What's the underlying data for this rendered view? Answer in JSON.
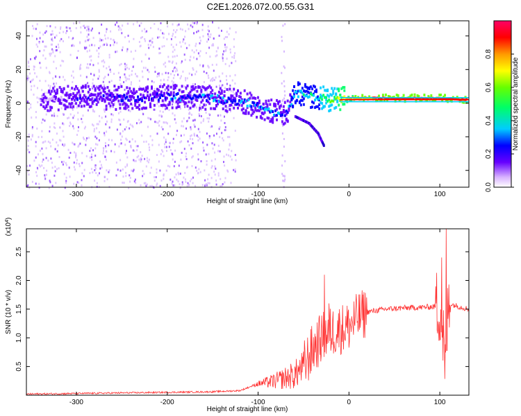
{
  "title": "C2E1.2026.072.00.55.G31",
  "chart_data": [
    {
      "type": "heatmap",
      "xlabel": "Height of straight line (km)",
      "ylabel": "Frequency (Hz)",
      "xlim": [
        -355,
        132
      ],
      "ylim": [
        -50,
        49
      ],
      "xticks": [
        -300,
        -200,
        -100,
        0,
        100
      ],
      "yticks": [
        -40,
        -20,
        0,
        20,
        40
      ],
      "colorbar": {
        "label": "Normalized spectral amplitude",
        "range": [
          0,
          1
        ],
        "ticks": [
          "0.0",
          "0.2",
          "0.4",
          "0.6",
          "0.8"
        ],
        "colors": [
          "#ffffff",
          "#6600ff",
          "#0000ff",
          "#00ccff",
          "#00ff66",
          "#66ff00",
          "#ffff00",
          "#ff9900",
          "#ff0000",
          "#ff0066"
        ]
      },
      "trace": [
        {
          "x": -340,
          "y": 2,
          "amp": 0.15
        },
        {
          "x": -300,
          "y": 4,
          "amp": 0.2
        },
        {
          "x": -250,
          "y": 3,
          "amp": 0.25
        },
        {
          "x": -200,
          "y": 4,
          "amp": 0.3
        },
        {
          "x": -150,
          "y": 3,
          "amp": 0.35
        },
        {
          "x": -110,
          "y": 0,
          "amp": 0.3
        },
        {
          "x": -85,
          "y": -5,
          "amp": 0.35
        },
        {
          "x": -70,
          "y": -6,
          "amp": 0.3
        },
        {
          "x": -60,
          "y": 6,
          "amp": 0.4
        },
        {
          "x": -40,
          "y": 4,
          "amp": 0.45
        },
        {
          "x": -20,
          "y": 2,
          "amp": 0.6
        },
        {
          "x": 0,
          "y": 3,
          "amp": 0.85
        },
        {
          "x": 50,
          "y": 3,
          "amp": 0.95
        },
        {
          "x": 100,
          "y": 3,
          "amp": 0.95
        },
        {
          "x": 130,
          "y": 2,
          "amp": 0.9
        }
      ],
      "branch": [
        {
          "x": -60,
          "y": -8
        },
        {
          "x": -45,
          "y": -12
        },
        {
          "x": -35,
          "y": -18
        },
        {
          "x": -28,
          "y": -26
        }
      ]
    },
    {
      "type": "line",
      "xlabel": "Height of straight line (km)",
      "ylabel": "SNR (10 * v/v)",
      "y_multiplier": "(x10",
      "y_multiplier_exp": "4",
      "xlim": [
        -355,
        132
      ],
      "ylim": [
        0,
        2.9
      ],
      "xticks": [
        -300,
        -200,
        -100,
        0,
        100
      ],
      "yticks": [
        "0.5",
        "1.0",
        "1.5",
        "2.0",
        "2.5"
      ],
      "color": "#ff3333",
      "series": [
        {
          "x": [
            -355,
            -300,
            -250,
            -200,
            -150,
            -120,
            -100,
            -80,
            -60,
            -50,
            -40,
            -30,
            -20,
            -10,
            0,
            10,
            20,
            40,
            60,
            80,
            100,
            104,
            106,
            108,
            110,
            120,
            132
          ],
          "y": [
            0.02,
            0.03,
            0.04,
            0.05,
            0.06,
            0.08,
            0.2,
            0.25,
            0.35,
            0.5,
            0.8,
            1.0,
            1.1,
            1.15,
            1.2,
            1.35,
            1.45,
            1.5,
            1.52,
            1.53,
            1.55,
            1.0,
            0.3,
            1.2,
            1.6,
            1.55,
            1.5
          ]
        }
      ],
      "spikes": [
        {
          "x": -27,
          "y": 2.1
        },
        {
          "x": -22,
          "y": 1.6
        },
        {
          "x": -10,
          "y": 1.3
        },
        {
          "x": 102,
          "y": 2.4
        },
        {
          "x": 107,
          "y": 2.9
        }
      ]
    }
  ]
}
